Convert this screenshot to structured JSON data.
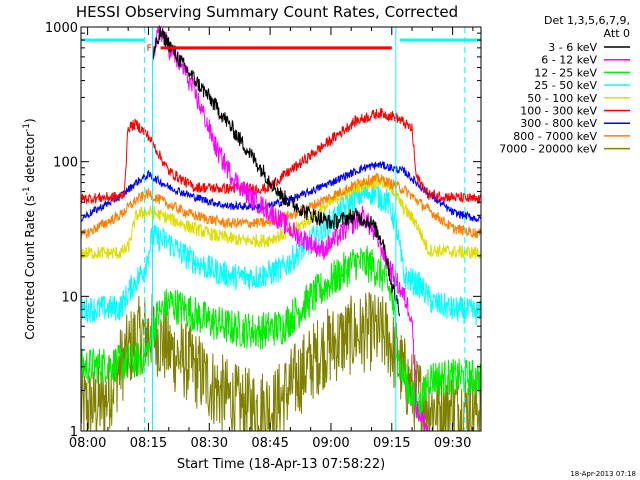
{
  "chart_data": {
    "type": "line",
    "title": "HESSI Observing Summary Count Rates, Corrected",
    "xlabel": "Start Time (18-Apr-13 07:58:22)",
    "ylabel": "Corrected Count Rate (s-1 detector-1)",
    "ylabel_parts": {
      "pre": "Corrected Count Rate (s",
      "exp1": "-1",
      "mid": " detector",
      "exp2": "-1",
      "post": ")"
    },
    "y_scale": "log",
    "xlim": [
      "07:58:22",
      "09:37:00"
    ],
    "ylim": [
      1,
      1000
    ],
    "x_ticks": [
      "08:00",
      "08:15",
      "08:30",
      "08:45",
      "09:00",
      "09:15",
      "09:30"
    ],
    "y_ticks": [
      "1",
      "10",
      "100",
      "1000"
    ],
    "grid": false,
    "legend": {
      "placement": "outside-right",
      "header": [
        "Det 1,3,5,6,7,9,",
        "Att 0"
      ],
      "entries": [
        {
          "label": "3 - 6 keV",
          "color": "#000000"
        },
        {
          "label": "6 - 12 keV",
          "color": "#ff00ff"
        },
        {
          "label": "12 - 25 keV",
          "color": "#00ee00"
        },
        {
          "label": "25 - 50 keV",
          "color": "#00ffff"
        },
        {
          "label": "50 - 100 keV",
          "color": "#dddd00"
        },
        {
          "label": "100 - 300 keV",
          "color": "#ff0000"
        },
        {
          "label": "300 - 800 keV",
          "color": "#0000ff"
        },
        {
          "label": "800 - 7000 keV",
          "color": "#ff8000"
        },
        {
          "label": "7000 - 20000 keV",
          "color": "#808000"
        }
      ]
    },
    "annotations": {
      "flare_flag": "F",
      "timestamp": "18-Apr-2013 07:18",
      "flare_bar": {
        "start": "08:18",
        "end": "09:15",
        "y": 700,
        "color": "#ff0000"
      },
      "night_bars": [
        {
          "start": "07:58:22",
          "end": "08:14",
          "y": 800,
          "color": "#00ffff"
        },
        {
          "start": "09:17",
          "end": "09:37:00",
          "y": 800,
          "color": "#00ffff"
        }
      ],
      "dashed_markers": [
        "08:14",
        "09:33"
      ],
      "solid_markers": [
        "08:16",
        "09:16"
      ]
    },
    "series": [
      {
        "name": "3 - 6 keV",
        "color": "#000000",
        "noise": 0.06,
        "points": [
          [
            "08:16",
            600
          ],
          [
            "08:18",
            900
          ],
          [
            "08:20",
            750
          ],
          [
            "08:24",
            500
          ],
          [
            "08:30",
            300
          ],
          [
            "08:36",
            170
          ],
          [
            "08:42",
            95
          ],
          [
            "08:48",
            55
          ],
          [
            "08:54",
            42
          ],
          [
            "09:00",
            35
          ],
          [
            "09:06",
            40
          ],
          [
            "09:10",
            35
          ],
          [
            "09:13",
            25
          ],
          [
            "09:15",
            12
          ],
          [
            "09:17",
            8
          ]
        ]
      },
      {
        "name": "6 - 12 keV",
        "color": "#ff00ff",
        "noise": 0.08,
        "points": [
          [
            "08:16",
            650
          ],
          [
            "08:18",
            950
          ],
          [
            "08:20",
            700
          ],
          [
            "08:24",
            470
          ],
          [
            "08:28",
            250
          ],
          [
            "08:32",
            120
          ],
          [
            "08:36",
            75
          ],
          [
            "08:40",
            55
          ],
          [
            "08:46",
            40
          ],
          [
            "08:52",
            28
          ],
          [
            "08:58",
            22
          ],
          [
            "09:04",
            32
          ],
          [
            "09:08",
            40
          ],
          [
            "09:12",
            25
          ],
          [
            "09:15",
            15
          ],
          [
            "09:18",
            10
          ],
          [
            "09:20",
            7
          ],
          [
            "09:21",
            1.5
          ],
          [
            "09:24",
            1
          ]
        ]
      },
      {
        "name": "12 - 25 keV",
        "color": "#00ee00",
        "noise": 0.14,
        "points": [
          [
            "07:58:22",
            3
          ],
          [
            "08:09",
            3.2
          ],
          [
            "08:13",
            3.4
          ],
          [
            "08:15",
            4
          ],
          [
            "08:17",
            7
          ],
          [
            "08:20",
            9
          ],
          [
            "08:24",
            8
          ],
          [
            "08:30",
            6.5
          ],
          [
            "08:36",
            5.8
          ],
          [
            "08:42",
            5.5
          ],
          [
            "08:48",
            6
          ],
          [
            "08:54",
            9
          ],
          [
            "09:00",
            13
          ],
          [
            "09:06",
            18
          ],
          [
            "09:10",
            17
          ],
          [
            "09:13",
            14
          ],
          [
            "09:15",
            10
          ],
          [
            "09:17",
            3
          ],
          [
            "09:20",
            1.8
          ],
          [
            "09:22",
            1.5
          ],
          [
            "09:24",
            2.5
          ],
          [
            "09:37",
            2.5
          ]
        ]
      },
      {
        "name": "25 - 50 keV",
        "color": "#00ffff",
        "noise": 0.1,
        "points": [
          [
            "07:58:22",
            8
          ],
          [
            "08:08",
            8.2
          ],
          [
            "08:11",
            12
          ],
          [
            "08:14",
            16
          ],
          [
            "08:16",
            28
          ],
          [
            "08:20",
            25
          ],
          [
            "08:24",
            20
          ],
          [
            "08:30",
            16
          ],
          [
            "08:36",
            14
          ],
          [
            "08:42",
            14
          ],
          [
            "08:48",
            16
          ],
          [
            "08:54",
            24
          ],
          [
            "09:00",
            36
          ],
          [
            "09:06",
            55
          ],
          [
            "09:10",
            60
          ],
          [
            "09:14",
            50
          ],
          [
            "09:16",
            35
          ],
          [
            "09:18",
            14
          ],
          [
            "09:22",
            12
          ],
          [
            "09:25",
            9
          ],
          [
            "09:30",
            8
          ],
          [
            "09:37",
            7.5
          ]
        ]
      },
      {
        "name": "50 - 100 keV",
        "color": "#dddd00",
        "noise": 0.05,
        "points": [
          [
            "07:58:22",
            21
          ],
          [
            "08:08",
            21
          ],
          [
            "08:10",
            23
          ],
          [
            "08:12",
            40
          ],
          [
            "08:14",
            42
          ],
          [
            "08:16",
            42
          ],
          [
            "08:20",
            38
          ],
          [
            "08:26",
            32
          ],
          [
            "08:32",
            28
          ],
          [
            "08:38",
            26
          ],
          [
            "08:44",
            26
          ],
          [
            "08:50",
            30
          ],
          [
            "08:56",
            40
          ],
          [
            "09:02",
            55
          ],
          [
            "09:08",
            68
          ],
          [
            "09:12",
            72
          ],
          [
            "09:15",
            64
          ],
          [
            "09:18",
            45
          ],
          [
            "09:21",
            35
          ],
          [
            "09:24",
            22
          ],
          [
            "09:37",
            21
          ]
        ]
      },
      {
        "name": "100 - 300 keV",
        "color": "#ff0000",
        "noise": 0.04,
        "points": [
          [
            "07:58:22",
            53
          ],
          [
            "08:08",
            55
          ],
          [
            "08:09",
            57
          ],
          [
            "08:10",
            180
          ],
          [
            "08:12",
            190
          ],
          [
            "08:15",
            155
          ],
          [
            "08:20",
            85
          ],
          [
            "08:26",
            65
          ],
          [
            "08:34",
            63
          ],
          [
            "08:44",
            63
          ],
          [
            "08:52",
            95
          ],
          [
            "09:00",
            145
          ],
          [
            "09:06",
            200
          ],
          [
            "09:12",
            230
          ],
          [
            "09:16",
            215
          ],
          [
            "09:20",
            175
          ],
          [
            "09:21",
            78
          ],
          [
            "09:24",
            57
          ],
          [
            "09:37",
            52
          ]
        ]
      },
      {
        "name": "300 - 800 keV",
        "color": "#0000ff",
        "noise": 0.03,
        "points": [
          [
            "07:58:22",
            38
          ],
          [
            "08:08",
            55
          ],
          [
            "08:12",
            70
          ],
          [
            "08:15",
            80
          ],
          [
            "08:20",
            65
          ],
          [
            "08:26",
            55
          ],
          [
            "08:34",
            47
          ],
          [
            "08:44",
            46
          ],
          [
            "08:52",
            55
          ],
          [
            "09:00",
            70
          ],
          [
            "09:08",
            90
          ],
          [
            "09:12",
            95
          ],
          [
            "09:18",
            85
          ],
          [
            "09:24",
            58
          ],
          [
            "09:30",
            42
          ],
          [
            "09:37",
            37
          ]
        ]
      },
      {
        "name": "800 - 7000 keV",
        "color": "#ff8000",
        "noise": 0.04,
        "points": [
          [
            "07:58:22",
            28
          ],
          [
            "08:08",
            40
          ],
          [
            "08:12",
            52
          ],
          [
            "08:15",
            58
          ],
          [
            "08:20",
            48
          ],
          [
            "08:26",
            40
          ],
          [
            "08:34",
            35
          ],
          [
            "08:44",
            35
          ],
          [
            "08:52",
            42
          ],
          [
            "09:00",
            55
          ],
          [
            "09:08",
            72
          ],
          [
            "09:12",
            75
          ],
          [
            "09:18",
            62
          ],
          [
            "09:24",
            44
          ],
          [
            "09:30",
            32
          ],
          [
            "09:37",
            29
          ]
        ]
      },
      {
        "name": "7000 - 20000 keV",
        "color": "#808000",
        "noise": 0.3,
        "points": [
          [
            "07:58:22",
            1.5
          ],
          [
            "08:04",
            1.6
          ],
          [
            "08:08",
            3
          ],
          [
            "08:12",
            5
          ],
          [
            "08:16",
            5.5
          ],
          [
            "08:20",
            4
          ],
          [
            "08:26",
            3
          ],
          [
            "08:32",
            2
          ],
          [
            "08:38",
            1.5
          ],
          [
            "08:46",
            1.5
          ],
          [
            "08:52",
            2.5
          ],
          [
            "08:58",
            4
          ],
          [
            "09:04",
            5
          ],
          [
            "09:10",
            5.5
          ],
          [
            "09:14",
            5
          ],
          [
            "09:17",
            3
          ],
          [
            "09:20",
            2
          ],
          [
            "09:25",
            1.5
          ],
          [
            "09:37",
            1.5
          ]
        ]
      }
    ]
  }
}
